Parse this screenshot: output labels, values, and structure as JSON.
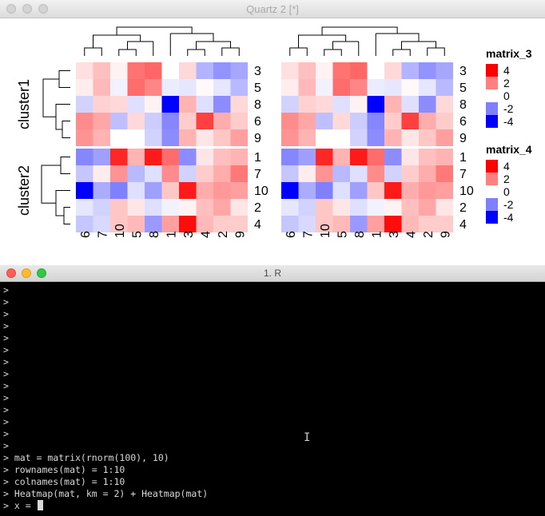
{
  "plot_window": {
    "title": "Quartz 2 [*]"
  },
  "terminal_window": {
    "title": "1. R",
    "lines": [
      ">",
      ">",
      ">",
      ">",
      ">",
      ">",
      ">",
      ">",
      ">",
      ">",
      ">",
      ">",
      ">",
      ">",
      "> mat = matrix(rnorm(100), 10)",
      "> rownames(mat) = 1:10",
      "> colnames(mat) = 1:10",
      "> Heatmap(mat, km = 2) + Heatmap(mat)",
      "> x = "
    ]
  },
  "chart_data": {
    "type": "heatmap",
    "row_labels": [
      "3",
      "5",
      "8",
      "6",
      "9",
      "1",
      "7",
      "10",
      "2",
      "4"
    ],
    "col_labels": [
      "6",
      "7",
      "10",
      "5",
      "8",
      "1",
      "3",
      "4",
      "2",
      "9"
    ],
    "slice_labels": [
      "cluster1",
      "cluster2"
    ],
    "slice_row_counts": [
      5,
      5
    ],
    "values": [
      [
        0.5,
        1.0,
        0.2,
        2.2,
        2.4,
        0.0,
        0.6,
        -1.2,
        -1.7,
        -1.4
      ],
      [
        0.3,
        1.1,
        -0.2,
        2.3,
        1.9,
        -0.3,
        -0.4,
        0.1,
        -0.4,
        -1.1
      ],
      [
        -0.7,
        0.7,
        0.6,
        -0.5,
        0.2,
        -4.2,
        1.2,
        -0.5,
        -1.8,
        0.6
      ],
      [
        1.8,
        1.4,
        -1.0,
        0.6,
        -0.8,
        -1.9,
        0.8,
        3.0,
        1.3,
        0.8
      ],
      [
        1.7,
        1.2,
        0.0,
        0.0,
        -0.7,
        -1.8,
        1.2,
        0.4,
        0.9,
        1.5
      ],
      [
        -1.9,
        -1.5,
        3.4,
        1.2,
        3.6,
        2.3,
        -1.8,
        0.4,
        1.0,
        1.2
      ],
      [
        -0.9,
        0.3,
        1.7,
        -1.1,
        -0.5,
        1.8,
        -0.7,
        0.8,
        1.3,
        2.1
      ],
      [
        -4.0,
        -1.3,
        -2.0,
        -0.5,
        -1.5,
        0.9,
        3.6,
        1.3,
        1.6,
        1.5
      ],
      [
        -0.4,
        -0.7,
        0.9,
        0.4,
        -0.5,
        -0.2,
        0.2,
        1.0,
        1.4,
        0.4
      ],
      [
        -0.9,
        -0.6,
        0.9,
        1.1,
        -1.6,
        1.5,
        3.8,
        1.1,
        0.8,
        0.8
      ]
    ],
    "legends": [
      {
        "title": "matrix_3",
        "ticks": [
          "4",
          "2",
          "0",
          "-2",
          "-4"
        ]
      },
      {
        "title": "matrix_4",
        "ticks": [
          "4",
          "2",
          "0",
          "-2",
          "-4"
        ]
      }
    ],
    "colors": {
      "low": "#0000ff",
      "mid": "#ffffff",
      "high": "#ff0000"
    },
    "range": [
      -4,
      4
    ]
  }
}
